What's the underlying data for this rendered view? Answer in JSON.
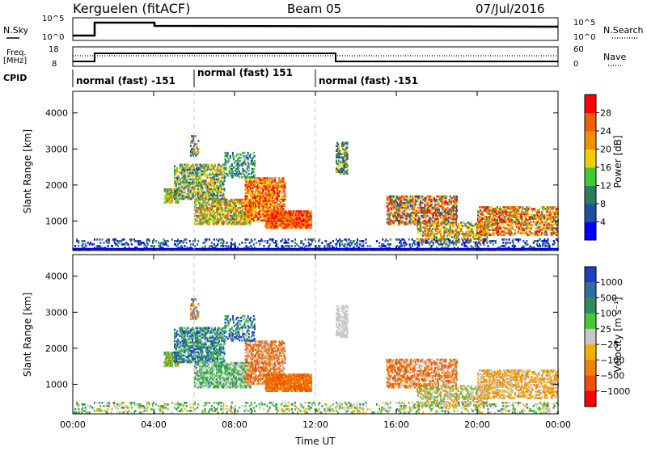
{
  "header": {
    "station": "Kerguelen (fitACF)",
    "beam": "Beam 05",
    "date": "07/Jul/2016"
  },
  "noise_panel": {
    "left_label": "N.Sky",
    "right_label": "N.Search",
    "left_ticks": [
      "10^5",
      "10^0"
    ],
    "right_ticks": [
      "10^5",
      "10^0"
    ]
  },
  "freq_panel": {
    "left_label_line1": "Freq.",
    "left_label_line2": "[MHz]",
    "right_label": "Nave",
    "left_ticks": [
      "18",
      "8"
    ],
    "right_ticks": [
      "60",
      "0"
    ]
  },
  "cpid": {
    "label": "CPID",
    "segments": [
      {
        "text": "normal (fast) -151",
        "start": "00:00",
        "end": "06:00"
      },
      {
        "text": "normal (fast) 151",
        "start": "06:00",
        "end": "12:00"
      },
      {
        "text": "normal (fast) -151",
        "start": "12:00",
        "end": "24:00"
      }
    ]
  },
  "chart_data": [
    {
      "type": "heatmap",
      "quantity": "power",
      "ylabel": "Slant Range [km]",
      "xlabel": "Time UT",
      "xlim": [
        "00:00",
        "24:00"
      ],
      "ylim": [
        180,
        4600
      ],
      "y_ticks": [
        "1000",
        "2000",
        "3000",
        "4000"
      ],
      "x_ticks": [
        "00:00",
        "04:00",
        "08:00",
        "12:00",
        "16:00",
        "20:00",
        "00:00"
      ],
      "colorbar_label": "Power [dB]",
      "colorbar_ticks": [
        "4",
        "8",
        "12",
        "16",
        "20",
        "24",
        "28"
      ],
      "colors": [
        "#0000ff",
        "#1f4fa0",
        "#2e7d5b",
        "#44c838",
        "#f0d000",
        "#f09000",
        "#f06000",
        "#ff0000"
      ]
    },
    {
      "type": "heatmap",
      "quantity": "velocity",
      "ylabel": "Slant Range [km]",
      "xlabel": "Time UT",
      "xlim": [
        "00:00",
        "24:00"
      ],
      "ylim": [
        180,
        4600
      ],
      "y_ticks": [
        "1000",
        "2000",
        "3000",
        "4000"
      ],
      "x_ticks": [
        "00:00",
        "04:00",
        "08:00",
        "12:00",
        "16:00",
        "20:00",
        "00:00"
      ],
      "colorbar_label": "Velocity [m s⁻¹]",
      "colorbar_ticks": [
        "1000",
        "500",
        "100",
        "25",
        "−25",
        "−100",
        "−500",
        "−1000"
      ],
      "colors": [
        "#1f3fbf",
        "#2e6fa0",
        "#2e8d5b",
        "#44c838",
        "#c8c8c8",
        "#f0b000",
        "#f08000",
        "#f05000",
        "#ff0000"
      ]
    }
  ]
}
